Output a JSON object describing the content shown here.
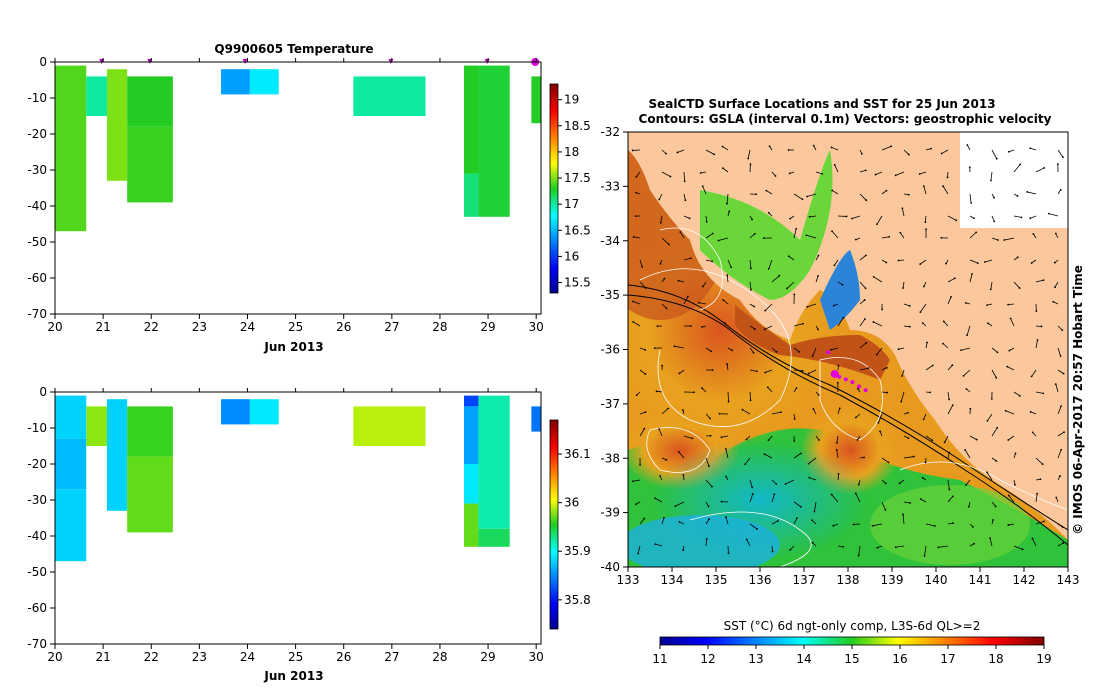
{
  "chart_data": [
    {
      "type": "heatmap",
      "title": "Q9900605  Temperature",
      "xlabel": "Jun 2013",
      "ylabel": "",
      "x_ticks": [
        "20",
        "21",
        "22",
        "23",
        "24",
        "25",
        "26",
        "27",
        "28",
        "29",
        "30"
      ],
      "xlim": [
        20,
        30.1
      ],
      "y_ticks": [
        "0",
        "-10",
        "-20",
        "-30",
        "-40",
        "-50",
        "-60",
        "-70"
      ],
      "ylim": [
        -70,
        0
      ],
      "colorbar_ticks": [
        "15.5",
        "16",
        "16.5",
        "17",
        "17.5",
        "18",
        "18.5",
        "19"
      ],
      "colorbar_range": [
        15.3,
        19.3
      ],
      "profile_markers": [
        20.97,
        21.97,
        23.95,
        26.98,
        28.98,
        29.98
      ],
      "cells": [
        {
          "x0": 20.0,
          "x1": 20.65,
          "y0": -1,
          "y1": -47,
          "value": 17.4
        },
        {
          "x0": 20.65,
          "x1": 21.08,
          "y0": -4,
          "y1": -15,
          "value": 17.0
        },
        {
          "x0": 21.08,
          "x1": 21.5,
          "y0": -2,
          "y1": -33,
          "value": 17.5
        },
        {
          "x0": 21.5,
          "x1": 22.45,
          "y0": -4,
          "y1": -18,
          "value": 17.3
        },
        {
          "x0": 21.5,
          "x1": 22.45,
          "y0": -18,
          "y1": -39,
          "value": 17.35
        },
        {
          "x0": 23.45,
          "x1": 24.05,
          "y0": -2,
          "y1": -9,
          "value": 16.4
        },
        {
          "x0": 24.05,
          "x1": 24.65,
          "y0": -2,
          "y1": -9,
          "value": 16.7
        },
        {
          "x0": 26.2,
          "x1": 27.7,
          "y0": -4,
          "y1": -15,
          "value": 17.0
        },
        {
          "x0": 28.5,
          "x1": 28.8,
          "y0": -1,
          "y1": -31,
          "value": 17.3
        },
        {
          "x0": 28.5,
          "x1": 28.8,
          "y0": -31,
          "y1": -43,
          "value": 17.1
        },
        {
          "x0": 28.8,
          "x1": 29.45,
          "y0": -1,
          "y1": -43,
          "value": 17.25
        },
        {
          "x0": 29.9,
          "x1": 30.1,
          "y0": -4,
          "y1": -17,
          "value": 17.3
        }
      ]
    },
    {
      "type": "heatmap",
      "title": "",
      "xlabel": "Jun 2013",
      "ylabel": "",
      "x_ticks": [
        "20",
        "21",
        "22",
        "23",
        "24",
        "25",
        "26",
        "27",
        "28",
        "29",
        "30"
      ],
      "xlim": [
        20,
        30.1
      ],
      "y_ticks": [
        "0",
        "-10",
        "-20",
        "-30",
        "-40",
        "-50",
        "-60",
        "-70"
      ],
      "ylim": [
        -70,
        0
      ],
      "colorbar_ticks": [
        "35.8",
        "35.9",
        "36",
        "36.1"
      ],
      "colorbar_range": [
        35.74,
        36.17
      ],
      "cells": [
        {
          "x0": 20.0,
          "x1": 20.65,
          "y0": -1,
          "y1": -13,
          "value": 35.88
        },
        {
          "x0": 20.0,
          "x1": 20.65,
          "y0": -13,
          "y1": -27,
          "value": 35.87
        },
        {
          "x0": 20.0,
          "x1": 20.65,
          "y0": -27,
          "y1": -47,
          "value": 35.88
        },
        {
          "x0": 20.65,
          "x1": 21.08,
          "y0": -4,
          "y1": -15,
          "value": 35.98
        },
        {
          "x0": 21.08,
          "x1": 21.5,
          "y0": -2,
          "y1": -33,
          "value": 35.88
        },
        {
          "x0": 21.5,
          "x1": 22.45,
          "y0": -4,
          "y1": -18,
          "value": 35.96
        },
        {
          "x0": 21.5,
          "x1": 22.45,
          "y0": -18,
          "y1": -39,
          "value": 35.97
        },
        {
          "x0": 23.45,
          "x1": 24.05,
          "y0": -2,
          "y1": -9,
          "value": 35.85
        },
        {
          "x0": 24.05,
          "x1": 24.65,
          "y0": -2,
          "y1": -9,
          "value": 35.89
        },
        {
          "x0": 26.2,
          "x1": 27.7,
          "y0": -4,
          "y1": -15,
          "value": 35.99
        },
        {
          "x0": 28.5,
          "x1": 28.8,
          "y0": -1,
          "y1": -4,
          "value": 35.82
        },
        {
          "x0": 28.5,
          "x1": 28.8,
          "y0": -4,
          "y1": -20,
          "value": 35.86
        },
        {
          "x0": 28.5,
          "x1": 28.8,
          "y0": -20,
          "y1": -31,
          "value": 35.89
        },
        {
          "x0": 28.5,
          "x1": 28.8,
          "y0": -31,
          "y1": -43,
          "value": 35.97
        },
        {
          "x0": 28.8,
          "x1": 29.45,
          "y0": -1,
          "y1": -38,
          "value": 35.92
        },
        {
          "x0": 28.8,
          "x1": 29.45,
          "y0": -38,
          "y1": -43,
          "value": 35.94
        },
        {
          "x0": 29.9,
          "x1": 30.1,
          "y0": -4,
          "y1": -11,
          "value": 35.84
        }
      ]
    },
    {
      "type": "heatmap",
      "title": "SealCTD Surface Locations and SST for 25 Jun 2013",
      "subtitle": "Contours: GSLA (interval 0.1m) Vectors: geostrophic velocity",
      "xlabel": "",
      "ylabel": "",
      "x_ticks": [
        "133",
        "134",
        "135",
        "136",
        "137",
        "138",
        "139",
        "140",
        "141",
        "142",
        "143"
      ],
      "xlim": [
        133,
        143
      ],
      "y_ticks": [
        "-32",
        "-33",
        "-34",
        "-35",
        "-36",
        "-37",
        "-38",
        "-39",
        "-40"
      ],
      "ylim": [
        -40,
        -32
      ],
      "colorbar_label": "SST (°C) 6d ngt-only comp, L3S-6d QL>=2",
      "colorbar_ticks": [
        "11",
        "12",
        "13",
        "14",
        "15",
        "16",
        "17",
        "18",
        "19"
      ],
      "colorbar_range": [
        11,
        19
      ],
      "seal_track": [
        [
          137.55,
          -36.05
        ],
        [
          137.7,
          -36.45
        ],
        [
          137.8,
          -36.5
        ],
        [
          137.95,
          -36.55
        ],
        [
          138.1,
          -36.6
        ],
        [
          138.25,
          -36.68
        ],
        [
          138.4,
          -36.75
        ]
      ],
      "side_label": "© IMOS 06-Apr-2017 20:57 Hobart Time"
    }
  ]
}
